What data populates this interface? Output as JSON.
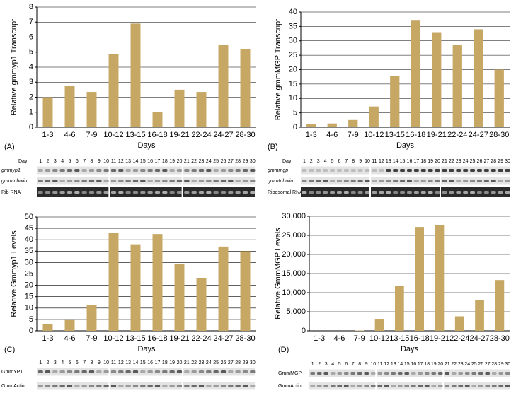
{
  "chart_data": [
    {
      "type": "bar",
      "panel_label": "(A)",
      "ylabel": "Relative gmmyp1 Transcript",
      "xlabel": "Days",
      "color": "#c6a764",
      "grid": true,
      "categories": [
        "1-3",
        "4-6",
        "7-9",
        "10-12",
        "13-15",
        "16-18",
        "19-21",
        "22-24",
        "24-27",
        "28-30"
      ],
      "values": [
        2.0,
        2.75,
        2.35,
        4.85,
        6.9,
        1.0,
        2.5,
        2.35,
        5.5,
        5.2
      ],
      "ylim": [
        0,
        8
      ],
      "yticks": [
        0,
        1,
        2,
        3,
        4,
        5,
        6,
        7,
        8
      ]
    },
    {
      "type": "bar",
      "panel_label": "(B)",
      "ylabel": "Relative gmmMGP Transcript",
      "xlabel": "Days",
      "color": "#c6a764",
      "grid": true,
      "categories": [
        "1-3",
        "4-6",
        "7-9",
        "10-12",
        "13-15",
        "16-18",
        "19-21",
        "22-24",
        "24-27",
        "28-30"
      ],
      "values": [
        1.2,
        1.3,
        2.5,
        7.2,
        17.8,
        37,
        33,
        28.5,
        34,
        20
      ],
      "ylim": [
        0,
        40
      ],
      "yticks": [
        0,
        5,
        10,
        15,
        20,
        25,
        30,
        35,
        40
      ]
    },
    {
      "type": "bar",
      "panel_label": "(C)",
      "ylabel": "Relative Gmmyp1 Levels",
      "xlabel": "Days",
      "color": "#c6a764",
      "grid": true,
      "categories": [
        "1-3",
        "4-6",
        "7-9",
        "10-12",
        "13-15",
        "16-18",
        "19-21",
        "22-24",
        "24-27",
        "28-30"
      ],
      "values": [
        3,
        4.7,
        11.5,
        43,
        38,
        42.5,
        29.5,
        23,
        37,
        35
      ],
      "ylim": [
        0,
        50
      ],
      "yticks": [
        0,
        5,
        10,
        15,
        20,
        25,
        30,
        35,
        40,
        45,
        50
      ]
    },
    {
      "type": "bar",
      "panel_label": "(D)",
      "ylabel": "Relative GmmMGP Levels",
      "xlabel": "Days",
      "color": "#c6a764",
      "grid": true,
      "categories": [
        "1-3",
        "4-6",
        "7-9",
        "10-12",
        "13-15",
        "16-18",
        "19-21",
        "22-24",
        "24-27",
        "28-30"
      ],
      "values": [
        0,
        0,
        100,
        3000,
        11800,
        27200,
        27700,
        3800,
        8000,
        13300
      ],
      "ylim": [
        0,
        30000
      ],
      "yticks": [
        0,
        {
          "value": 5000,
          "label": "5,000"
        },
        {
          "value": 10000,
          "label": "10,000"
        },
        {
          "value": 15000,
          "label": "15,000"
        },
        {
          "value": 20000,
          "label": "20,000"
        },
        {
          "value": 25000,
          "label": "25,000"
        },
        {
          "value": 30000,
          "label": "30,000"
        }
      ]
    }
  ],
  "blots": [
    {
      "day_label": "Day",
      "days": [
        1,
        2,
        3,
        4,
        5,
        6,
        7,
        8,
        9,
        10,
        11,
        12,
        13,
        14,
        15,
        16,
        17,
        18,
        19,
        20,
        21,
        22,
        23,
        24,
        25,
        26,
        27,
        28,
        29,
        30
      ],
      "rows": [
        "gmmyp1",
        "gmmtubulin",
        "Rib RNA"
      ]
    },
    {
      "day_label": "Day",
      "days": [
        1,
        2,
        3,
        4,
        5,
        6,
        7,
        8,
        9,
        10,
        11,
        12,
        13,
        14,
        15,
        16,
        17,
        18,
        19,
        20,
        21,
        22,
        23,
        24,
        25,
        26,
        27,
        28,
        29,
        30
      ],
      "rows": [
        "gmmmgp",
        "gmmtubulin",
        "Ribosomal RNA"
      ]
    },
    {
      "days": [
        1,
        2,
        3,
        4,
        5,
        6,
        7,
        8,
        9,
        10,
        11,
        12,
        13,
        14,
        15,
        16,
        17,
        18,
        19,
        20,
        21,
        22,
        23,
        24,
        25,
        26,
        27,
        28,
        29,
        30
      ],
      "rows": [
        "GmmYP1",
        "GmmActin"
      ]
    },
    {
      "days": [
        1,
        2,
        3,
        4,
        5,
        6,
        7,
        8,
        9,
        10,
        11,
        12,
        13,
        14,
        15,
        16,
        17,
        18,
        19,
        20,
        21,
        22,
        23,
        24,
        25,
        26,
        27,
        28,
        29,
        30
      ],
      "rows": [
        "GmmMGP",
        "GmmActin"
      ]
    }
  ]
}
